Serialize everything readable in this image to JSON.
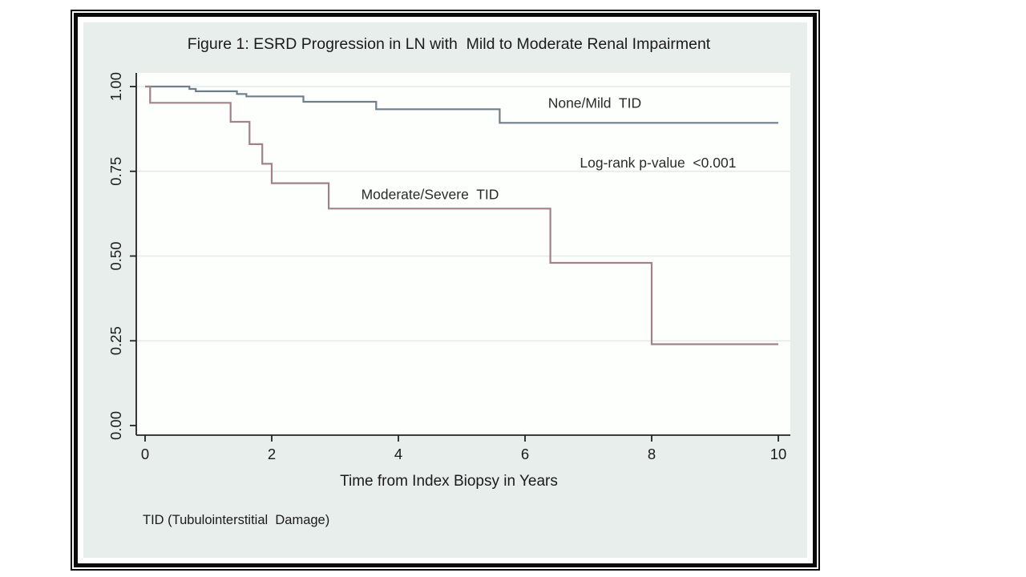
{
  "figure": {
    "footnote": "TID (Tubulointerstitial  Damage)"
  },
  "chart_data": {
    "type": "line",
    "subtype": "kaplan-meier-step",
    "title": "Figure 1: ESRD Progression in LN with  Mild to Moderate Renal Impairment",
    "xlabel": "Time from Index Biopsy in Years",
    "ylabel": "",
    "xlim": [
      0,
      10
    ],
    "ylim": [
      0.0,
      1.0
    ],
    "xticks": [
      0,
      2,
      4,
      6,
      8,
      10
    ],
    "ytick_values": [
      0.0,
      0.25,
      0.5,
      0.75,
      1.0
    ],
    "ytick_labels": [
      "0.00",
      "0.25",
      "0.50",
      "0.75",
      "1.00"
    ],
    "grid": true,
    "gridline_values": [
      0.25,
      0.5,
      0.75,
      1.0
    ],
    "legend_position": "inline-labels",
    "series": [
      {
        "name": "None/Mild  TID",
        "color": "#6e7e8b",
        "label_x": 7.1,
        "label_y": 0.952,
        "points": [
          [
            0,
            1.0
          ],
          [
            0.7,
            0.993
          ],
          [
            0.8,
            0.986
          ],
          [
            1.45,
            0.978
          ],
          [
            1.6,
            0.971
          ],
          [
            2.5,
            0.955
          ],
          [
            3.65,
            0.933
          ],
          [
            5.6,
            0.893
          ],
          [
            10,
            0.893
          ]
        ]
      },
      {
        "name": "Moderate/Severe  TID",
        "color": "#a08287",
        "label_x": 4.5,
        "label_y": 0.682,
        "points": [
          [
            0,
            1.0
          ],
          [
            0.08,
            0.952
          ],
          [
            1.35,
            0.896
          ],
          [
            1.65,
            0.83
          ],
          [
            1.85,
            0.772
          ],
          [
            2.0,
            0.715
          ],
          [
            2.9,
            0.64
          ],
          [
            6.4,
            0.48
          ],
          [
            8.0,
            0.24
          ],
          [
            10,
            0.24
          ]
        ]
      }
    ],
    "annotation": {
      "text": "Log-rank p-value  <0.001",
      "x": 8.1,
      "y": 0.775
    }
  },
  "colors": {
    "panel_background": "#e8eeec",
    "plot_background": "#fdfffd",
    "gridline": "#e3ebe9",
    "axis": "#222222",
    "frame": "#0a0a0a",
    "series_none_mild": "#6e7e8b",
    "series_moderate_severe": "#a08287"
  }
}
